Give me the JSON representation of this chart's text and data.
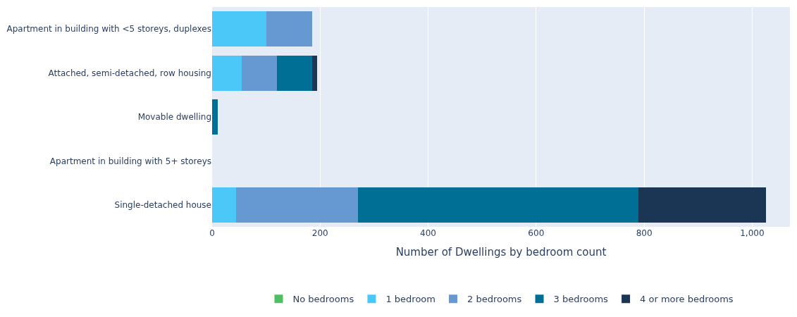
{
  "chart_data": {
    "type": "bar",
    "orientation": "horizontal",
    "stacked": true,
    "xlabel": "Number of Dwellings by bedroom count",
    "categories": [
      "Apartment in building with <5 storeys, duplexes",
      "Attached, semi-detached, row housing",
      "Movable dwelling",
      "Apartment in building with 5+ storeys",
      "Single-detached house"
    ],
    "series": [
      {
        "name": "No bedrooms",
        "color": "#4fbf63",
        "values": [
          null,
          null,
          null,
          null,
          null
        ]
      },
      {
        "name": "1 bedroom",
        "color": "#4cc8f8",
        "values": [
          100,
          55,
          0,
          0,
          45
        ]
      },
      {
        "name": "2 bedrooms",
        "color": "#6699d2",
        "values": [
          85,
          65,
          0,
          0,
          225
        ]
      },
      {
        "name": "3 bedrooms",
        "color": "#006f96",
        "values": [
          0,
          65,
          10,
          0,
          520
        ]
      },
      {
        "name": "4 or more bedrooms",
        "color": "#1b3555",
        "values": [
          0,
          10,
          0,
          0,
          235
        ]
      }
    ],
    "xlim": [
      0,
      1070
    ],
    "xticks": [
      0,
      200,
      400,
      600,
      800,
      {
        "value": 1000,
        "label": "1,000"
      }
    ],
    "grid": "x",
    "legend": "bottom"
  }
}
